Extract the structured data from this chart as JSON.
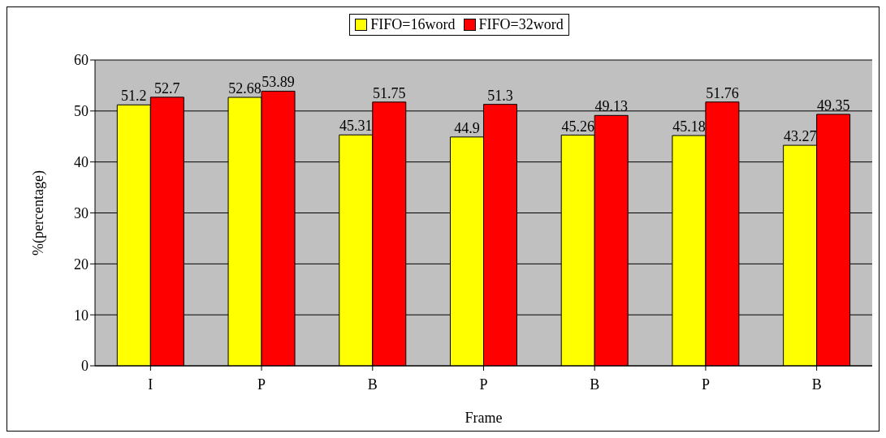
{
  "chart_data": {
    "type": "bar",
    "xlabel": "Frame",
    "ylabel": "%(percentage)",
    "categories": [
      "I",
      "P",
      "B",
      "P",
      "B",
      "P",
      "B"
    ],
    "series": [
      {
        "name": "FIFO=16word",
        "color": "#ffff00",
        "values": [
          51.2,
          52.68,
          45.31,
          44.9,
          45.26,
          45.18,
          43.27
        ]
      },
      {
        "name": "FIFO=32word",
        "color": "#ff0000",
        "values": [
          52.7,
          53.89,
          51.75,
          51.3,
          49.13,
          51.76,
          49.35
        ]
      }
    ],
    "ylim": [
      0,
      60
    ],
    "yticks": [
      0,
      10,
      20,
      30,
      40,
      50,
      60
    ],
    "grid": "y",
    "legend": "top",
    "data_labels": true
  }
}
